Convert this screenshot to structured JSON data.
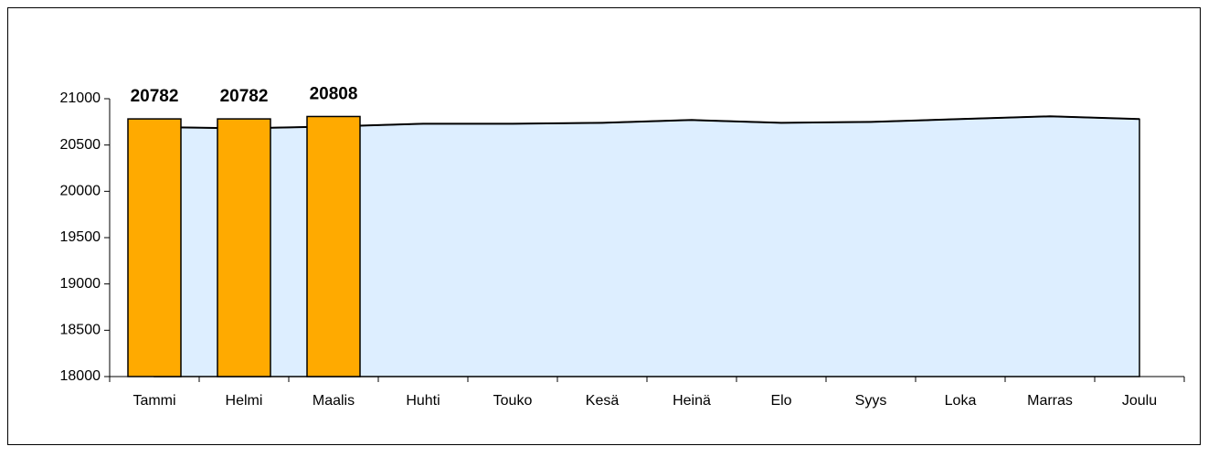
{
  "chart_data": {
    "type": "bar-area",
    "categories": [
      "Tammi",
      "Helmi",
      "Maalis",
      "Huhti",
      "Touko",
      "Kesä",
      "Heinä",
      "Elo",
      "Syys",
      "Loka",
      "Marras",
      "Joulu"
    ],
    "series": [
      {
        "type": "area",
        "color": "#ddeeff",
        "values": [
          20694,
          20680,
          20700,
          20730,
          20730,
          20740,
          20770,
          20740,
          20750,
          20780,
          20810,
          20780
        ]
      },
      {
        "type": "bar",
        "color": "#ffaa00",
        "values": [
          20782,
          20782,
          20808,
          null,
          null,
          null,
          null,
          null,
          null,
          null,
          null,
          null
        ]
      }
    ],
    "ylim": [
      18000,
      21000
    ],
    "yticks": [
      18000,
      18500,
      19000,
      19500,
      20000,
      20500,
      21000
    ],
    "grid": false
  }
}
